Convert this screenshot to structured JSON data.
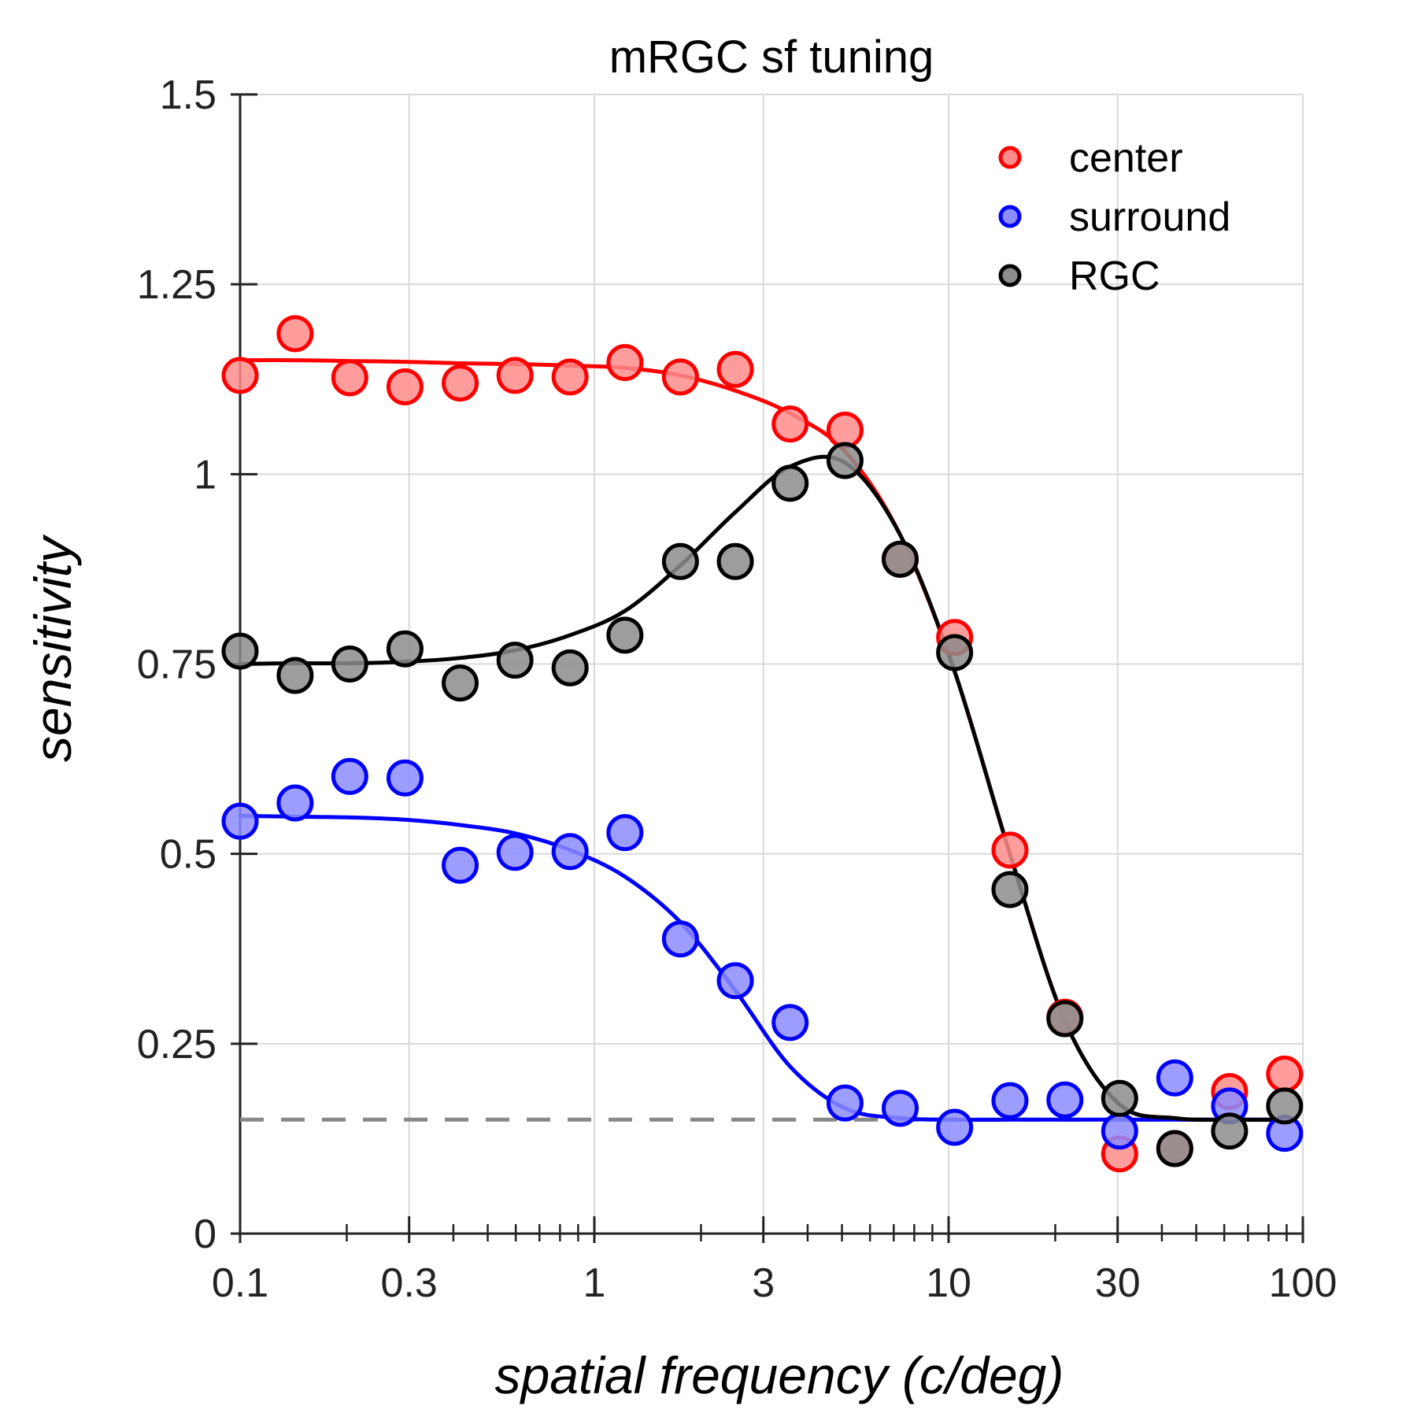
{
  "chart_data": {
    "type": "scatter",
    "title": "mRGC sf tuning",
    "xlabel": "spatial frequency (c/deg)",
    "ylabel": "sensitivity",
    "xscale": "log",
    "xlim": [
      0.1,
      100
    ],
    "ylim": [
      0,
      1.5
    ],
    "xticks": [
      0.1,
      0.3,
      1,
      3,
      10,
      30,
      100
    ],
    "xtick_labels": [
      "0.1",
      "0.3",
      "1",
      "3",
      "10",
      "30",
      "100"
    ],
    "yticks": [
      0,
      0.25,
      0.5,
      0.75,
      1,
      1.25,
      1.5
    ],
    "ytick_labels": [
      "0",
      "0.25",
      "0.5",
      "0.75",
      "1",
      "1.25",
      "1.5"
    ],
    "grid": true,
    "legend_position": "top-right",
    "x": [
      0.1,
      0.143,
      0.204,
      0.292,
      0.418,
      0.597,
      0.854,
      1.22,
      1.75,
      2.5,
      3.57,
      5.1,
      7.3,
      10.4,
      14.9,
      21.3,
      30.4,
      43.5,
      62.1,
      88.8
    ],
    "series": [
      {
        "name": "center",
        "color": "#ff0000",
        "marker_fill": "#ff8c8c",
        "values": [
          1.13,
          1.185,
          1.127,
          1.115,
          1.12,
          1.13,
          1.128,
          1.147,
          1.128,
          1.138,
          1.066,
          1.058,
          0.888,
          0.785,
          0.505,
          0.285,
          0.105,
          0.112,
          0.187,
          0.21
        ],
        "fit": [
          1.15,
          1.15,
          1.149,
          1.148,
          1.146,
          1.145,
          1.143,
          1.14,
          1.13,
          1.11,
          1.08,
          1.03,
          0.92,
          0.74,
          0.5,
          0.28,
          0.17,
          0.152,
          0.15,
          0.15
        ]
      },
      {
        "name": "surround",
        "color": "#0000ff",
        "marker_fill": "#8c8cff",
        "values": [
          0.543,
          0.567,
          0.602,
          0.6,
          0.485,
          0.502,
          0.503,
          0.528,
          0.388,
          0.333,
          0.278,
          0.172,
          0.165,
          0.14,
          0.175,
          0.176,
          0.135,
          0.205,
          0.168,
          0.132
        ],
        "fit": [
          0.55,
          0.549,
          0.548,
          0.545,
          0.538,
          0.527,
          0.505,
          0.47,
          0.41,
          0.32,
          0.22,
          0.165,
          0.152,
          0.15,
          0.15,
          0.15,
          0.15,
          0.15,
          0.15,
          0.15
        ]
      },
      {
        "name": "RGC",
        "color": "#000000",
        "marker_fill": "#8c8c8c",
        "values": [
          0.767,
          0.735,
          0.75,
          0.77,
          0.725,
          0.755,
          0.745,
          0.788,
          0.885,
          0.885,
          0.988,
          1.018,
          0.888,
          0.765,
          0.453,
          0.283,
          0.178,
          0.112,
          0.135,
          0.168
        ],
        "fit": [
          0.75,
          0.751,
          0.751,
          0.753,
          0.758,
          0.768,
          0.788,
          0.82,
          0.88,
          0.95,
          1.01,
          1.015,
          0.92,
          0.74,
          0.5,
          0.28,
          0.17,
          0.152,
          0.15,
          0.15
        ]
      }
    ],
    "baseline": {
      "value": 0.15,
      "style": "dashed",
      "color": "#888888"
    }
  }
}
